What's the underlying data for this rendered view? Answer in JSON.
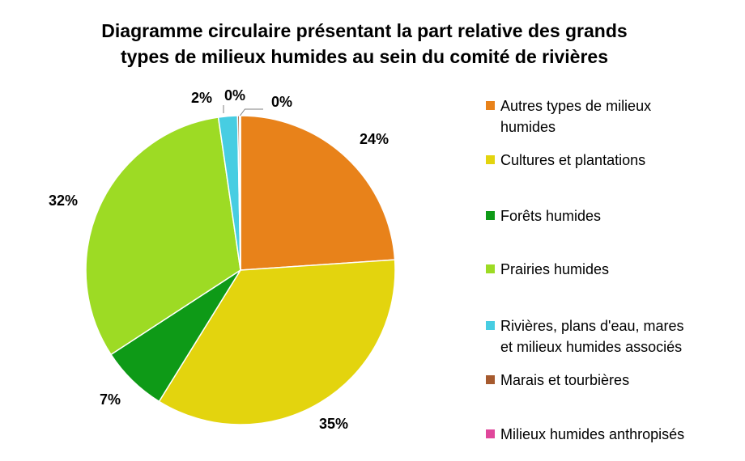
{
  "chart_data": {
    "type": "pie",
    "title_lines": [
      "Diagramme circulaire présentant la part relative des grands",
      "types de milieux humides au sein du comité de rivières"
    ],
    "slices": [
      {
        "name": "Autres types de milieux humides",
        "value": 24,
        "label": "24%",
        "color": "#E8821A"
      },
      {
        "name": "Cultures et plantations",
        "value": 35,
        "label": "35%",
        "color": "#E3D40E"
      },
      {
        "name": "Forêts humides",
        "value": 7,
        "label": "7%",
        "color": "#0E9A17"
      },
      {
        "name": "Prairies humides",
        "value": 32,
        "label": "32%",
        "color": "#9DDB24"
      },
      {
        "name": "Rivières, plans d'eau, mares et milieux humides associés",
        "value": 2,
        "label": "2%",
        "color": "#47CDE2"
      },
      {
        "name": "Marais et tourbières",
        "value": 0.2,
        "label": "0%",
        "color": "#A65A2E"
      },
      {
        "name": "Milieux humides anthropisés",
        "value": 0.1,
        "label": "0%",
        "color": "#E0479B"
      }
    ],
    "legend": {
      "position": "right",
      "items": [
        {
          "lines": [
            "Autres types de milieux",
            "humides"
          ],
          "color": "#E8821A"
        },
        {
          "lines": [
            "Cultures et plantations"
          ],
          "color": "#E3D40E"
        },
        {
          "lines": [
            "Forêts humides"
          ],
          "color": "#0E9A17"
        },
        {
          "lines": [
            "Prairies humides"
          ],
          "color": "#9DDB24"
        },
        {
          "lines": [
            "Rivières, plans d'eau, mares",
            "et milieux humides associés"
          ],
          "color": "#47CDE2"
        },
        {
          "lines": [
            "Marais et tourbières"
          ],
          "color": "#A65A2E"
        },
        {
          "lines": [
            "Milieux humides anthropisés"
          ],
          "color": "#E0479B"
        }
      ]
    }
  }
}
